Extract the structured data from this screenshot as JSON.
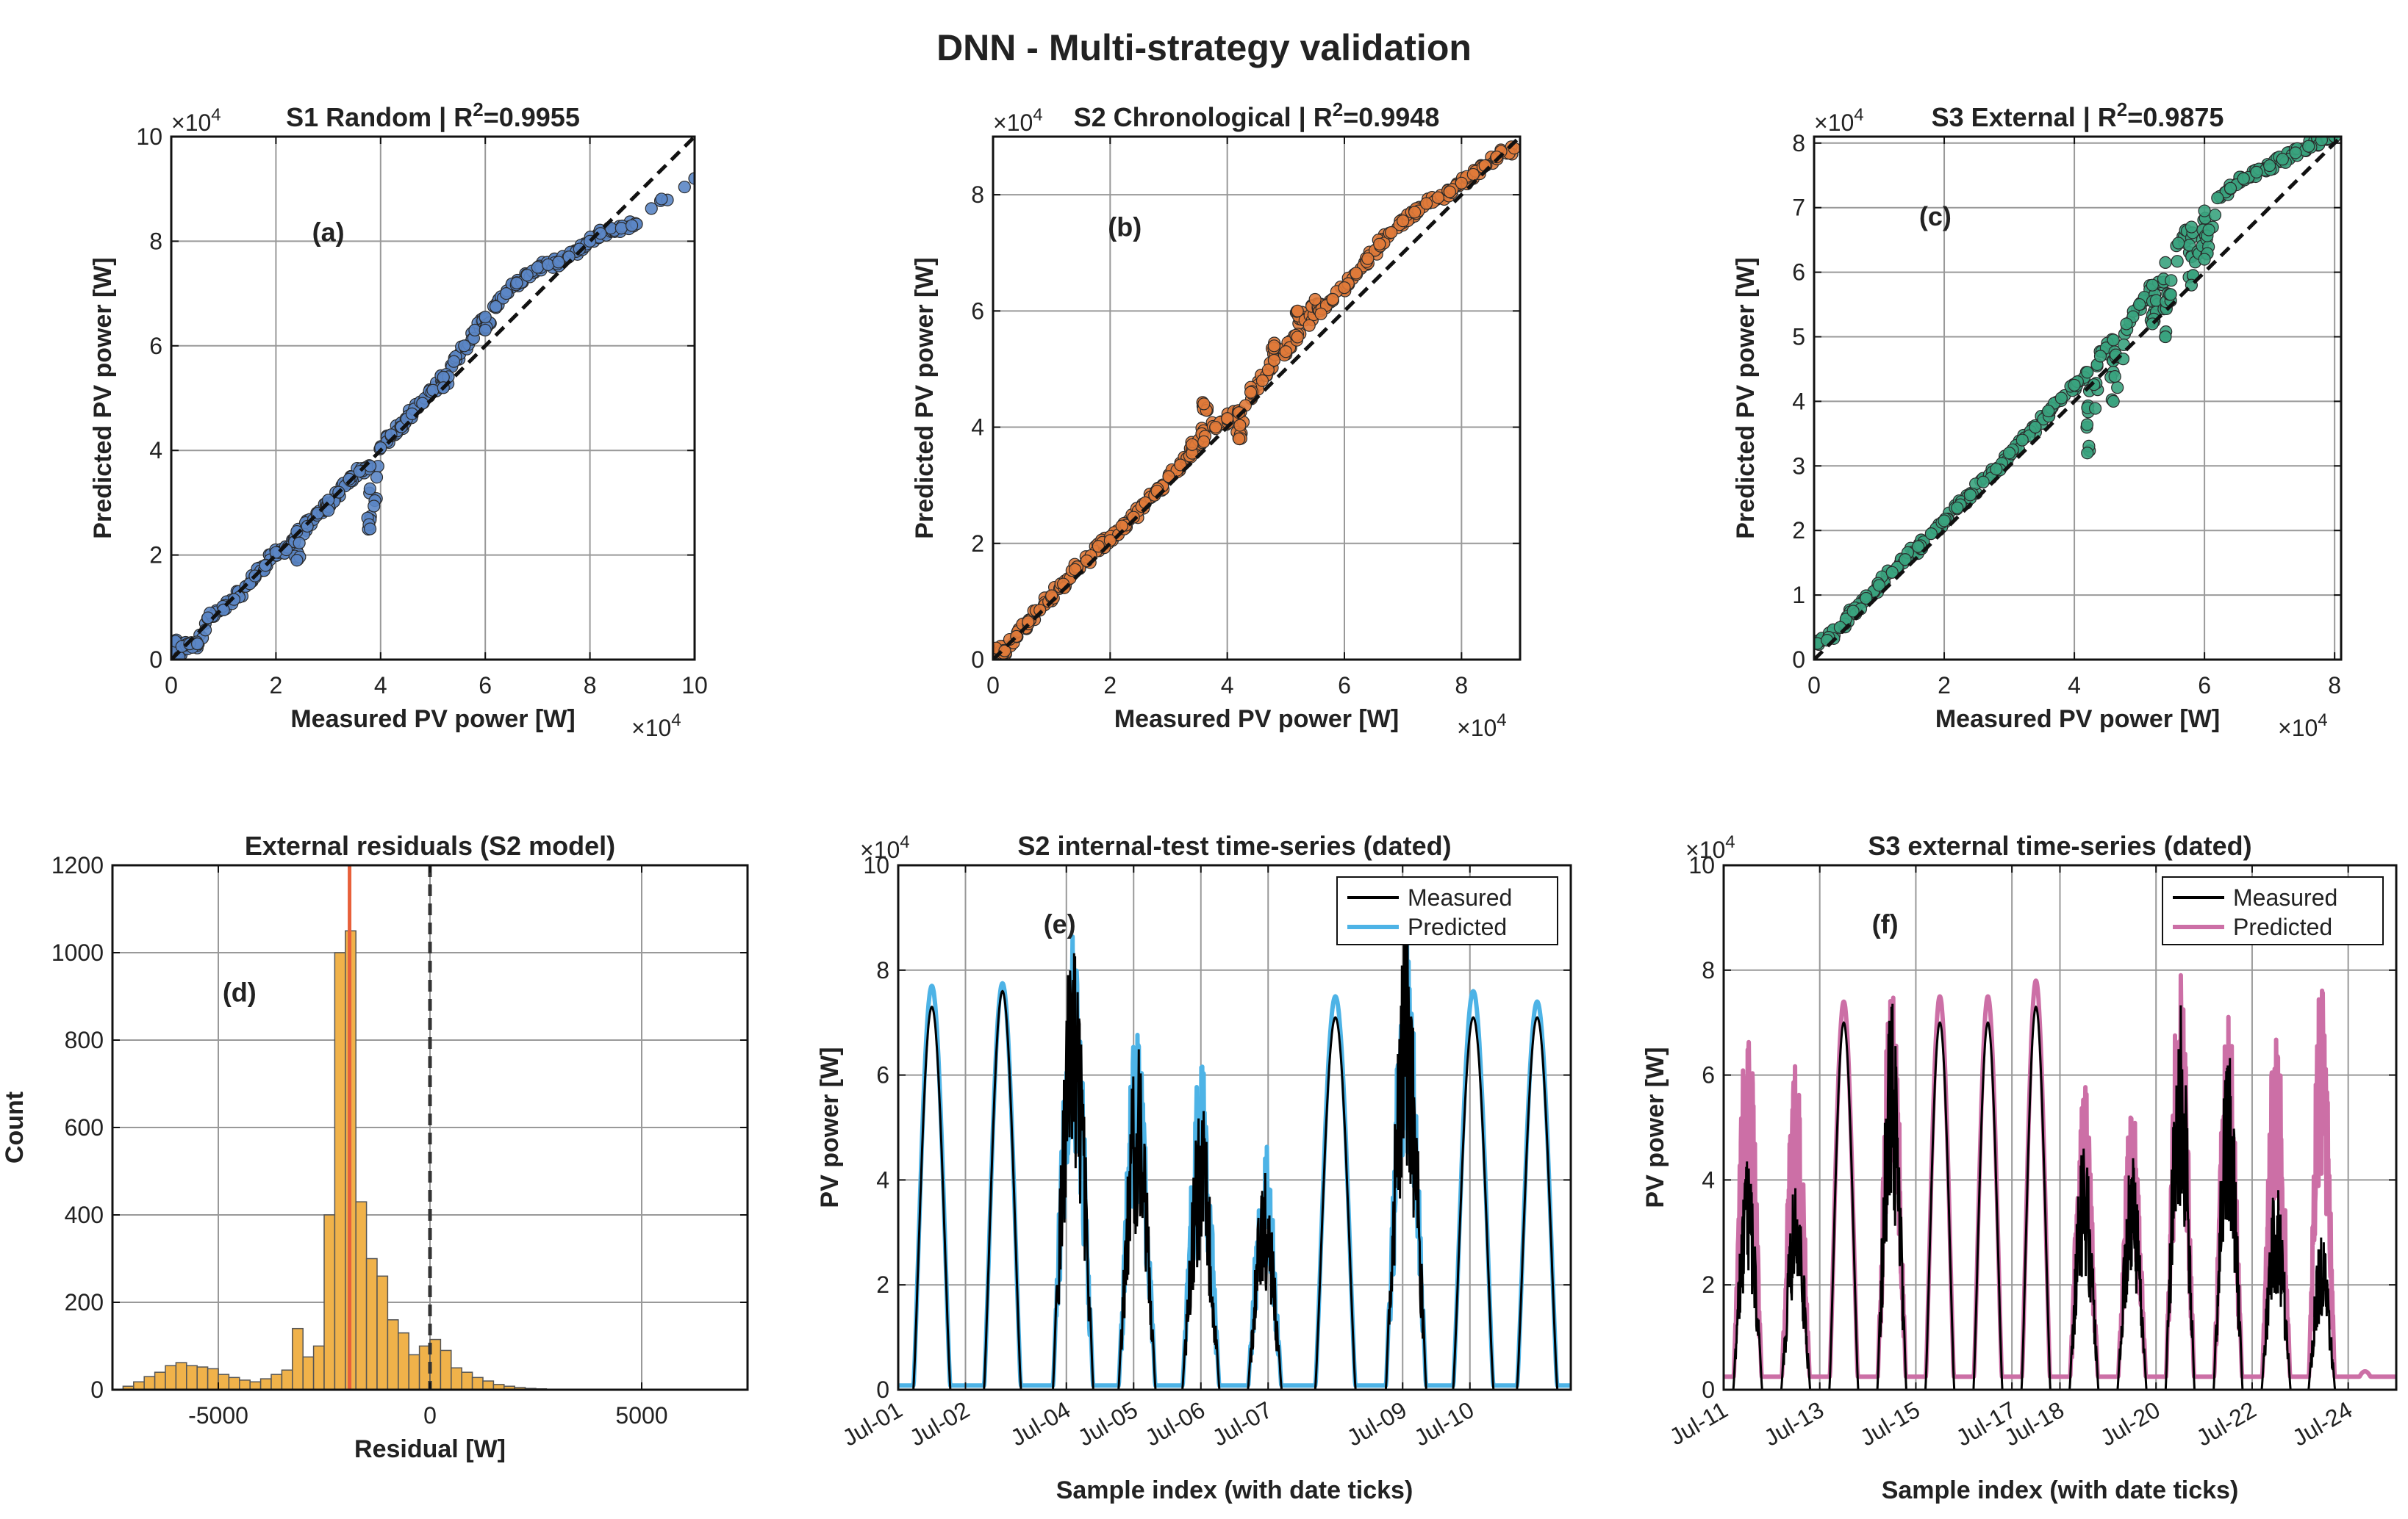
{
  "figure_title": "DNN  -  Multi-strategy validation",
  "chart_data": [
    {
      "id": "a",
      "type": "scatter",
      "panel_label": "(a)",
      "title": "S1 Random  |  R",
      "r2_sup": "2",
      "r2_value": "=0.9955",
      "xlabel": "Measured PV power [W]",
      "ylabel": "Predicted PV power [W]",
      "xlim": [
        0,
        100000
      ],
      "ylim": [
        0,
        100000
      ],
      "xticks": [
        0,
        20000,
        40000,
        60000,
        80000,
        100000
      ],
      "xtick_labels": [
        "0",
        "2",
        "4",
        "6",
        "8",
        "10"
      ],
      "yticks": [
        0,
        20000,
        40000,
        60000,
        80000,
        100000
      ],
      "ytick_labels": [
        "0",
        "2",
        "4",
        "6",
        "8",
        "10"
      ],
      "exponent_label": "×10",
      "exponent_power": "4",
      "grid": true,
      "reference_line": "y = x (dashed)",
      "marker_color": "#5b86c5",
      "points": [
        [
          300,
          1500
        ],
        [
          800,
          3500
        ],
        [
          1500,
          500
        ],
        [
          2000,
          2500
        ],
        [
          3500,
          3000
        ],
        [
          5000,
          3000
        ],
        [
          7000,
          8000
        ],
        [
          10000,
          9500
        ],
        [
          12000,
          11500
        ],
        [
          15000,
          14500
        ],
        [
          18000,
          18000
        ],
        [
          20000,
          20500
        ],
        [
          22000,
          21000
        ],
        [
          24000,
          24500
        ],
        [
          26000,
          25500
        ],
        [
          28000,
          28000
        ],
        [
          30000,
          30500
        ],
        [
          32000,
          32000
        ],
        [
          34000,
          34500
        ],
        [
          36000,
          36000
        ],
        [
          38000,
          37000
        ],
        [
          40000,
          40500
        ],
        [
          42000,
          43000
        ],
        [
          44000,
          44500
        ],
        [
          46000,
          47000
        ],
        [
          48000,
          49000
        ],
        [
          50000,
          51500
        ],
        [
          52000,
          54000
        ],
        [
          54000,
          57000
        ],
        [
          56000,
          60000
        ],
        [
          58000,
          63000
        ],
        [
          60000,
          65500
        ],
        [
          62000,
          67500
        ],
        [
          64000,
          70000
        ],
        [
          66000,
          72000
        ],
        [
          68000,
          73500
        ],
        [
          70000,
          75000
        ],
        [
          72000,
          75500
        ],
        [
          74000,
          76000
        ],
        [
          76000,
          77000
        ],
        [
          78000,
          78500
        ],
        [
          80000,
          80000
        ],
        [
          82000,
          81500
        ],
        [
          84000,
          82500
        ],
        [
          86000,
          82500
        ],
        [
          88000,
          83000
        ],
        [
          100000,
          92000
        ],
        [
          16000,
          16000
        ],
        [
          38000,
          25000
        ],
        [
          24000,
          19000
        ],
        [
          30000,
          28500
        ],
        [
          52000,
          52000
        ],
        [
          60000,
          63000
        ],
        [
          45000,
          46000
        ]
      ]
    },
    {
      "id": "b",
      "type": "scatter",
      "panel_label": "(b)",
      "title": "S2 Chronological  |  R",
      "r2_sup": "2",
      "r2_value": "=0.9948",
      "xlabel": "Measured PV power [W]",
      "ylabel": "Predicted PV power [W]",
      "xlim": [
        0,
        90000
      ],
      "ylim": [
        0,
        90000
      ],
      "xticks": [
        0,
        20000,
        40000,
        60000,
        80000
      ],
      "xtick_labels": [
        "0",
        "2",
        "4",
        "6",
        "8"
      ],
      "yticks": [
        0,
        20000,
        40000,
        60000,
        80000
      ],
      "ytick_labels": [
        "0",
        "2",
        "4",
        "6",
        "8"
      ],
      "exponent_label": "×10",
      "exponent_power": "4",
      "grid": true,
      "reference_line": "y = x (dashed)",
      "marker_color": "#e07a3a",
      "points": [
        [
          500,
          2000
        ],
        [
          2000,
          1500
        ],
        [
          4000,
          4000
        ],
        [
          6000,
          6500
        ],
        [
          8000,
          8500
        ],
        [
          10000,
          11000
        ],
        [
          12000,
          13000
        ],
        [
          14000,
          15500
        ],
        [
          16000,
          17000
        ],
        [
          18000,
          19500
        ],
        [
          20000,
          20500
        ],
        [
          22000,
          23000
        ],
        [
          24000,
          24500
        ],
        [
          26000,
          27000
        ],
        [
          28000,
          29000
        ],
        [
          30000,
          31500
        ],
        [
          32000,
          33500
        ],
        [
          34000,
          35500
        ],
        [
          36000,
          37500
        ],
        [
          38000,
          40000
        ],
        [
          40000,
          41500
        ],
        [
          42000,
          42500
        ],
        [
          44000,
          46000
        ],
        [
          46000,
          48000
        ],
        [
          48000,
          51500
        ],
        [
          50000,
          53000
        ],
        [
          52000,
          55500
        ],
        [
          54000,
          57500
        ],
        [
          56000,
          59500
        ],
        [
          58000,
          62000
        ],
        [
          60000,
          64000
        ],
        [
          62000,
          66500
        ],
        [
          64000,
          69000
        ],
        [
          66000,
          71500
        ],
        [
          68000,
          73500
        ],
        [
          70000,
          75500
        ],
        [
          72000,
          77000
        ],
        [
          74000,
          78500
        ],
        [
          76000,
          79500
        ],
        [
          78000,
          80500
        ],
        [
          80000,
          82000
        ],
        [
          82000,
          83500
        ],
        [
          84000,
          85000
        ],
        [
          86000,
          86500
        ],
        [
          89000,
          88000
        ],
        [
          48000,
          54000
        ],
        [
          55000,
          62000
        ],
        [
          36000,
          44000
        ],
        [
          52000,
          60000
        ],
        [
          42000,
          38000
        ],
        [
          34000,
          37000
        ]
      ]
    },
    {
      "id": "c",
      "type": "scatter",
      "panel_label": "(c)",
      "title": "S3 External  |  R",
      "r2_sup": "2",
      "r2_value": "=0.9875",
      "xlabel": "Measured PV power [W]",
      "ylabel": "Predicted PV power [W]",
      "xlim": [
        0,
        81000
      ],
      "ylim": [
        0,
        81000
      ],
      "xticks": [
        0,
        20000,
        40000,
        60000,
        80000
      ],
      "xtick_labels": [
        "0",
        "2",
        "4",
        "6",
        "8"
      ],
      "yticks": [
        0,
        10000,
        20000,
        30000,
        40000,
        50000,
        60000,
        70000,
        80000
      ],
      "ytick_labels": [
        "0",
        "1",
        "2",
        "3",
        "4",
        "5",
        "6",
        "7",
        "8"
      ],
      "exponent_label": "×10",
      "exponent_power": "4",
      "grid": true,
      "reference_line": "y = x (dashed)",
      "marker_color": "#3aa37e",
      "points": [
        [
          500,
          2500
        ],
        [
          2000,
          3000
        ],
        [
          4000,
          5000
        ],
        [
          6000,
          7500
        ],
        [
          8000,
          9500
        ],
        [
          10000,
          11500
        ],
        [
          12000,
          13500
        ],
        [
          14000,
          15500
        ],
        [
          16000,
          17500
        ],
        [
          18000,
          19500
        ],
        [
          20000,
          21500
        ],
        [
          22000,
          23500
        ],
        [
          24000,
          25500
        ],
        [
          26000,
          27500
        ],
        [
          28000,
          29500
        ],
        [
          30000,
          32000
        ],
        [
          32000,
          34000
        ],
        [
          34000,
          36000
        ],
        [
          36000,
          38500
        ],
        [
          38000,
          40500
        ],
        [
          40000,
          42500
        ],
        [
          42000,
          44500
        ],
        [
          44000,
          47000
        ],
        [
          46000,
          49500
        ],
        [
          48000,
          52000
        ],
        [
          50000,
          55000
        ],
        [
          52000,
          58000
        ],
        [
          54000,
          61500
        ],
        [
          56000,
          64500
        ],
        [
          58000,
          67000
        ],
        [
          60000,
          69500
        ],
        [
          62000,
          71500
        ],
        [
          64000,
          73000
        ],
        [
          66000,
          74500
        ],
        [
          68000,
          75500
        ],
        [
          70000,
          76500
        ],
        [
          72000,
          77500
        ],
        [
          74000,
          78500
        ],
        [
          76000,
          79500
        ],
        [
          78000,
          80500
        ],
        [
          80000,
          81000
        ],
        [
          42000,
          32000
        ],
        [
          46000,
          40000
        ],
        [
          52000,
          52000
        ],
        [
          54000,
          50000
        ],
        [
          58000,
          58000
        ],
        [
          60000,
          62000
        ]
      ]
    },
    {
      "id": "d",
      "type": "bar",
      "panel_label": "(d)",
      "title": "External residuals (S2 model)",
      "xlabel": "Residual [W]",
      "ylabel": "Count",
      "xlim": [
        -7500,
        7500
      ],
      "ylim": [
        0,
        1200
      ],
      "xticks": [
        -5000,
        0,
        5000
      ],
      "xtick_labels": [
        "-5000",
        "0",
        "5000"
      ],
      "yticks": [
        0,
        200,
        400,
        600,
        800,
        1000,
        1200
      ],
      "ytick_labels": [
        "0",
        "200",
        "400",
        "600",
        "800",
        "1000",
        "1200"
      ],
      "grid": true,
      "bar_color": "#f0b24a",
      "bin_width": 250,
      "bins_left_edges": [
        -7250,
        -7000,
        -6750,
        -6500,
        -6250,
        -6000,
        -5750,
        -5500,
        -5250,
        -5000,
        -4750,
        -4500,
        -4250,
        -4000,
        -3750,
        -3500,
        -3250,
        -3000,
        -2750,
        -2500,
        -2250,
        -2000,
        -1750,
        -1500,
        -1250,
        -1000,
        -750,
        -500,
        -250,
        0,
        250,
        500,
        750,
        1000,
        1250,
        1500,
        1750,
        2000,
        2250,
        2500
      ],
      "counts": [
        8,
        18,
        30,
        40,
        55,
        62,
        55,
        52,
        48,
        35,
        28,
        22,
        18,
        25,
        35,
        45,
        140,
        75,
        100,
        400,
        1000,
        1050,
        430,
        300,
        260,
        160,
        130,
        80,
        100,
        115,
        90,
        50,
        40,
        28,
        20,
        12,
        8,
        5,
        3,
        2
      ],
      "vlines": [
        {
          "x": -1900,
          "color": "#e8603a",
          "style": "solid"
        },
        {
          "x": 0,
          "color": "#333333",
          "style": "dashed"
        }
      ]
    },
    {
      "id": "e",
      "type": "line",
      "panel_label": "(e)",
      "title": "S2 internal-test time-series (dated)",
      "xlabel": "Sample index (with date ticks)",
      "ylabel": "PV power [W]",
      "xlim": [
        0,
        10
      ],
      "ylim": [
        0,
        100000
      ],
      "xticks": [
        0,
        1,
        2.5,
        3.5,
        4.5,
        5.5,
        7.5,
        8.5
      ],
      "xtick_labels": [
        "Jul-01",
        "Jul-02",
        "Jul-04",
        "Jul-05",
        "Jul-06",
        "Jul-07",
        "Jul-09",
        "Jul-10"
      ],
      "yticks": [
        0,
        20000,
        40000,
        60000,
        80000,
        100000
      ],
      "ytick_labels": [
        "0",
        "2",
        "4",
        "6",
        "8",
        "10"
      ],
      "exponent_label": "×10",
      "exponent_power": "4",
      "grid": true,
      "legend": "top-right",
      "series": [
        {
          "name": "Measured",
          "color": "#000000"
        },
        {
          "name": "Predicted",
          "color": "#4db3e6"
        }
      ],
      "days": [
        {
          "center": 0.5,
          "width": 0.55,
          "measured_peak": 73000,
          "predicted_peak": 77000,
          "noisy": false
        },
        {
          "center": 1.55,
          "width": 0.55,
          "measured_peak": 76000,
          "predicted_peak": 77500,
          "noisy": false
        },
        {
          "center": 2.6,
          "width": 0.6,
          "measured_peak": 90000,
          "predicted_peak": 88000,
          "noisy": true
        },
        {
          "center": 3.55,
          "width": 0.55,
          "measured_peak": 66000,
          "predicted_peak": 71000,
          "noisy": true
        },
        {
          "center": 4.5,
          "width": 0.55,
          "measured_peak": 55000,
          "predicted_peak": 64000,
          "noisy": true
        },
        {
          "center": 5.45,
          "width": 0.5,
          "measured_peak": 42000,
          "predicted_peak": 48000,
          "noisy": true
        },
        {
          "center": 6.5,
          "width": 0.6,
          "measured_peak": 71000,
          "predicted_peak": 75000,
          "noisy": false
        },
        {
          "center": 7.55,
          "width": 0.6,
          "measured_peak": 88000,
          "predicted_peak": 87000,
          "noisy": true
        },
        {
          "center": 8.55,
          "width": 0.6,
          "measured_peak": 71000,
          "predicted_peak": 76000,
          "noisy": false
        },
        {
          "center": 9.5,
          "width": 0.6,
          "measured_peak": 71000,
          "predicted_peak": 74000,
          "noisy": false
        }
      ]
    },
    {
      "id": "f",
      "type": "line",
      "panel_label": "(f)",
      "title": "S3 external time-series (dated)",
      "xlabel": "Sample index (with date ticks)",
      "ylabel": "PV power [W]",
      "xlim": [
        0,
        14
      ],
      "ylim": [
        0,
        100000
      ],
      "xticks": [
        0,
        2,
        4,
        6,
        7,
        9,
        11,
        13
      ],
      "xtick_labels": [
        "Jul-11",
        "Jul-13",
        "Jul-15",
        "Jul-17",
        "Jul-18",
        "Jul-20",
        "Jul-22",
        "Jul-24"
      ],
      "yticks": [
        0,
        20000,
        40000,
        60000,
        80000,
        100000
      ],
      "ytick_labels": [
        "0",
        "2",
        "4",
        "6",
        "8",
        "10"
      ],
      "exponent_label": "×10",
      "exponent_power": "4",
      "grid": true,
      "legend": "top-right",
      "series": [
        {
          "name": "Measured",
          "color": "#000000"
        },
        {
          "name": "Predicted",
          "color": "#cc6fa6"
        }
      ],
      "days": [
        {
          "center": 0.5,
          "width": 0.6,
          "measured_peak": 45000,
          "predicted_peak": 72000,
          "noisy": true
        },
        {
          "center": 1.5,
          "width": 0.6,
          "measured_peak": 40000,
          "predicted_peak": 63000,
          "noisy": true
        },
        {
          "center": 2.5,
          "width": 0.6,
          "measured_peak": 70000,
          "predicted_peak": 74000,
          "noisy": false
        },
        {
          "center": 3.5,
          "width": 0.6,
          "measured_peak": 75000,
          "predicted_peak": 81000,
          "noisy": true
        },
        {
          "center": 4.5,
          "width": 0.6,
          "measured_peak": 70000,
          "predicted_peak": 75000,
          "noisy": false
        },
        {
          "center": 5.5,
          "width": 0.6,
          "measured_peak": 70000,
          "predicted_peak": 75000,
          "noisy": false
        },
        {
          "center": 6.5,
          "width": 0.6,
          "measured_peak": 73000,
          "predicted_peak": 78000,
          "noisy": false
        },
        {
          "center": 7.5,
          "width": 0.6,
          "measured_peak": 48000,
          "predicted_peak": 59000,
          "noisy": true
        },
        {
          "center": 8.5,
          "width": 0.6,
          "measured_peak": 45000,
          "predicted_peak": 55000,
          "noisy": true
        },
        {
          "center": 9.5,
          "width": 0.6,
          "measured_peak": 76000,
          "predicted_peak": 82000,
          "noisy": true
        },
        {
          "center": 10.5,
          "width": 0.6,
          "measured_peak": 65000,
          "predicted_peak": 73000,
          "noisy": true
        },
        {
          "center": 11.5,
          "width": 0.6,
          "measured_peak": 40000,
          "predicted_peak": 71000,
          "noisy": true
        },
        {
          "center": 12.45,
          "width": 0.55,
          "measured_peak": 30000,
          "predicted_peak": 81000,
          "noisy": true
        },
        {
          "center": 13.35,
          "width": 0.5,
          "measured_peak": 0,
          "predicted_peak": 3500,
          "noisy": false
        }
      ]
    }
  ]
}
